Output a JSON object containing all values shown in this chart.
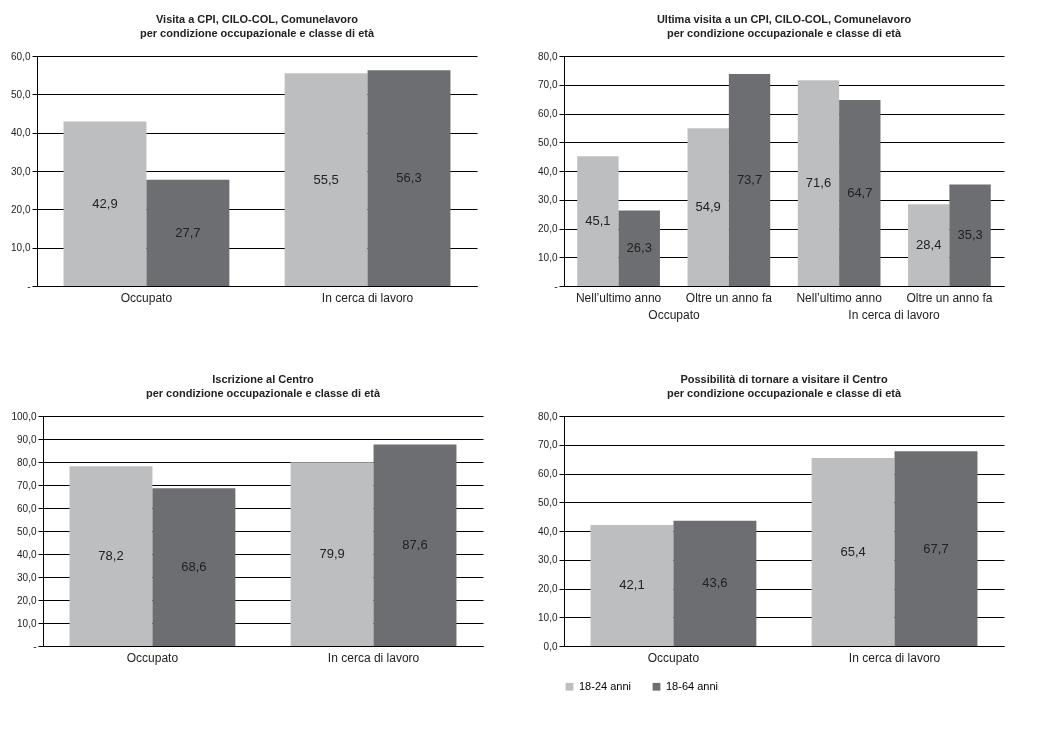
{
  "chart_data": [
    {
      "type": "bar",
      "title": "Visita a CPI, CILO-COL, Comunelavoro",
      "subtitle": "per condizione occupazionale e classe di età",
      "categories": [
        "Occupato",
        "In cerca di lavoro"
      ],
      "series": [
        {
          "color": "#bdbec0",
          "values": [
            42.9,
            55.5
          ],
          "value_labels": [
            "42,9",
            "55,5"
          ]
        },
        {
          "color": "#6d6e72",
          "values": [
            27.7,
            56.3
          ],
          "value_labels": [
            "27,7",
            "56,3"
          ]
        }
      ],
      "ylim": [
        0,
        60
      ],
      "yticks": [
        {
          "value": 0,
          "label": "-"
        },
        {
          "value": 10,
          "label": "10,0"
        },
        {
          "value": 20,
          "label": "20,0"
        },
        {
          "value": 30,
          "label": "30,0"
        },
        {
          "value": 40,
          "label": "40,0"
        },
        {
          "value": 50,
          "label": "50,0"
        },
        {
          "value": 60,
          "label": "60,0"
        }
      ],
      "grid": "y"
    },
    {
      "type": "bar",
      "title": "Ultima visita a un CPI, CILO-COL, Comunelavoro",
      "subtitle": "per condizione occupazionale e classe di età",
      "categories": [
        "Nell’ultimo anno",
        "Oltre un anno fa",
        "Nell’ultimo anno",
        "Oltre un anno fa"
      ],
      "annotations": [
        "Occupato",
        "In cerca di lavoro"
      ],
      "series": [
        {
          "color": "#bdbec0",
          "values": [
            45.1,
            54.9,
            71.6,
            28.4
          ],
          "value_labels": [
            "45,1",
            "54,9",
            "71,6",
            "28,4"
          ]
        },
        {
          "color": "#6d6e72",
          "values": [
            26.3,
            73.7,
            64.7,
            35.3
          ],
          "value_labels": [
            "26,3",
            "73,7",
            "64,7",
            "35,3"
          ]
        }
      ],
      "ylim": [
        0,
        80
      ],
      "yticks": [
        {
          "value": 0,
          "label": "-"
        },
        {
          "value": 10,
          "label": "10,0"
        },
        {
          "value": 20,
          "label": "20,0"
        },
        {
          "value": 30,
          "label": "30,0"
        },
        {
          "value": 40,
          "label": "40,0"
        },
        {
          "value": 50,
          "label": "50,0"
        },
        {
          "value": 60,
          "label": "60,0"
        },
        {
          "value": 70,
          "label": "70,0"
        },
        {
          "value": 80,
          "label": "80,0"
        }
      ],
      "grid": "y"
    },
    {
      "type": "bar",
      "title": "Iscrizione al Centro",
      "subtitle": "per condizione occupazionale e classe di età",
      "categories": [
        "Occupato",
        "In cerca di lavoro"
      ],
      "series": [
        {
          "color": "#bdbec0",
          "values": [
            78.2,
            79.9
          ],
          "value_labels": [
            "78,2",
            "79,9"
          ]
        },
        {
          "color": "#6d6e72",
          "values": [
            68.6,
            87.6
          ],
          "value_labels": [
            "68,6",
            "87,6"
          ]
        }
      ],
      "ylim": [
        0,
        100
      ],
      "yticks": [
        {
          "value": 0,
          "label": "-"
        },
        {
          "value": 10,
          "label": "10,0"
        },
        {
          "value": 20,
          "label": "20,0"
        },
        {
          "value": 30,
          "label": "30,0"
        },
        {
          "value": 40,
          "label": "40,0"
        },
        {
          "value": 50,
          "label": "50,0"
        },
        {
          "value": 60,
          "label": "60,0"
        },
        {
          "value": 70,
          "label": "70,0"
        },
        {
          "value": 80,
          "label": "80,0"
        },
        {
          "value": 90,
          "label": "90,0"
        },
        {
          "value": 100,
          "label": "100,0"
        }
      ],
      "grid": "y"
    },
    {
      "type": "bar",
      "title": "Possibilità di tornare a visitare il Centro",
      "subtitle": "per condizione occupazionale e classe di età",
      "categories": [
        "Occupato",
        "In cerca di lavoro"
      ],
      "series": [
        {
          "name": "18-24 anni",
          "color": "#bdbec0",
          "values": [
            42.1,
            65.4
          ],
          "value_labels": [
            "42,1",
            "65,4"
          ]
        },
        {
          "name": "18-64 anni",
          "color": "#6d6e72",
          "values": [
            43.6,
            67.7
          ],
          "value_labels": [
            "43,6",
            "67,7"
          ]
        }
      ],
      "ylim": [
        0,
        80
      ],
      "yticks": [
        {
          "value": 0,
          "label": "0,0"
        },
        {
          "value": 10,
          "label": "10,0"
        },
        {
          "value": 20,
          "label": "20,0"
        },
        {
          "value": 30,
          "label": "30,0"
        },
        {
          "value": 40,
          "label": "40,0"
        },
        {
          "value": 50,
          "label": "50,0"
        },
        {
          "value": 60,
          "label": "60,0"
        },
        {
          "value": 70,
          "label": "70,0"
        },
        {
          "value": 80,
          "label": "80,0"
        }
      ],
      "grid": "y",
      "legend": "bottom"
    }
  ]
}
